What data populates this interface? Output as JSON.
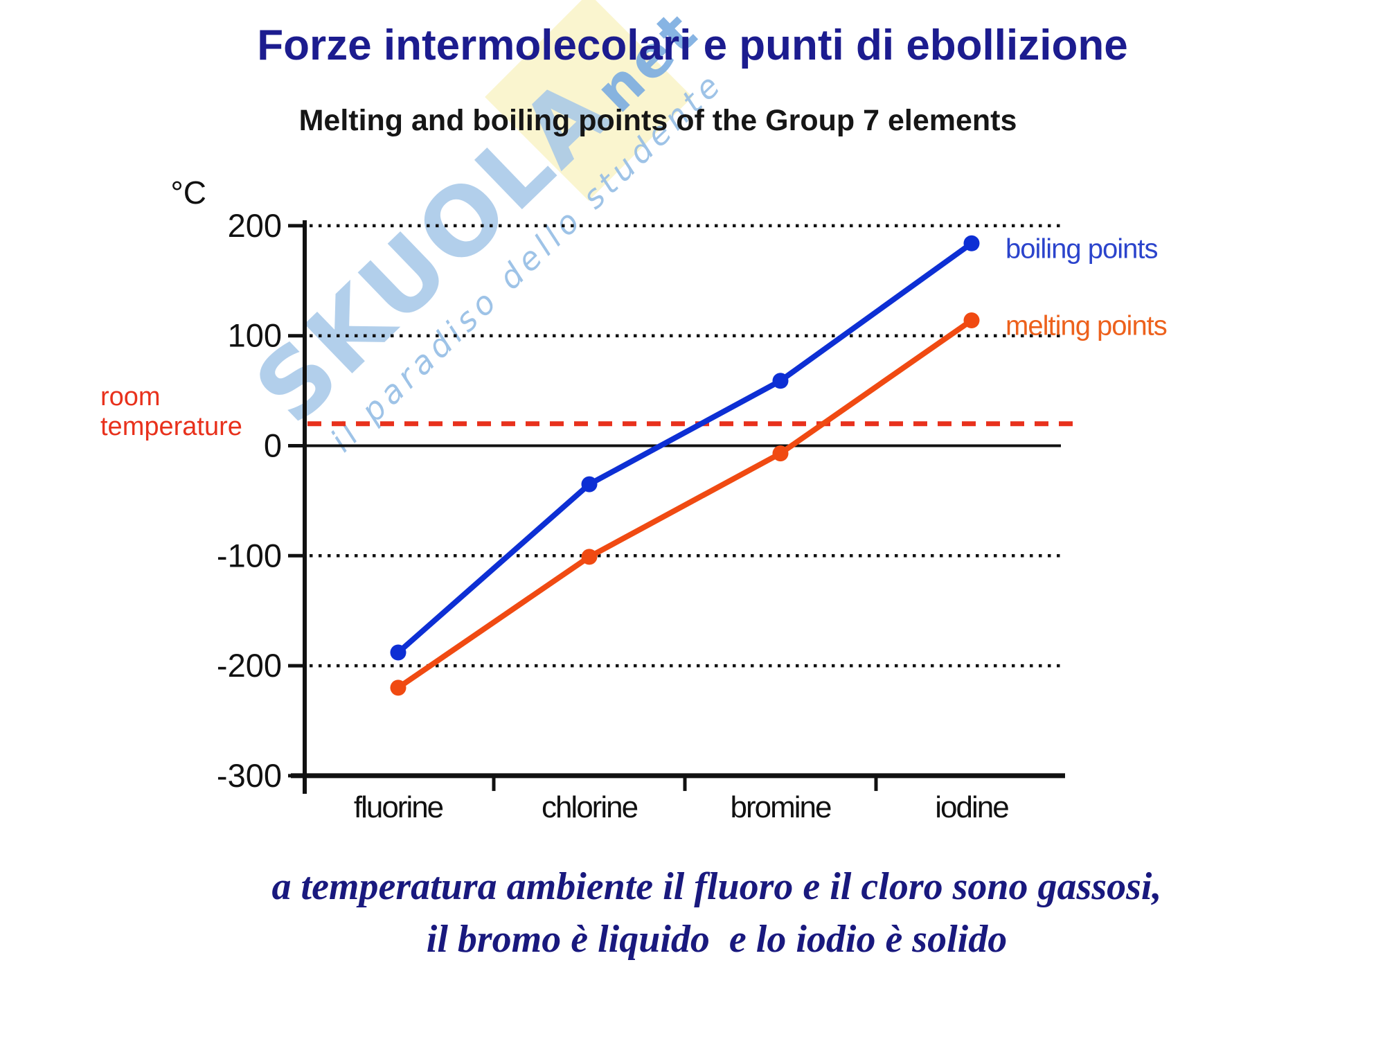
{
  "slide": {
    "title": "Forze intermolecolari e punti di ebollizione",
    "caption": [
      "a temperatura ambiente il fluoro e il cloro sono gassosi,",
      "il bromo è liquido  e lo iodio è solido"
    ]
  },
  "watermark": {
    "brand": "SKUOLA",
    "brand_suffix": "net",
    "tagline": "il paradiso dello studente"
  },
  "chart_data": {
    "type": "line",
    "title": "Melting and boiling points of the Group 7 elements",
    "ylabel": "°C",
    "xlabel": "",
    "categories": [
      "fluorine",
      "chlorine",
      "bromine",
      "iodine"
    ],
    "series": [
      {
        "name": "boiling points",
        "values": [
          -188,
          -35,
          59,
          184
        ],
        "color": "#0d2fd4",
        "legend_color": "#2b44cc"
      },
      {
        "name": "melting points",
        "values": [
          -220,
          -101,
          -7,
          114
        ],
        "color": "#f04a12",
        "legend_color": "#ed611c"
      }
    ],
    "yticks": [
      200,
      100,
      0,
      -100,
      -200,
      -300
    ],
    "ylim": [
      -300,
      210
    ],
    "room_temperature": {
      "label_lines": [
        "room",
        "temperature"
      ],
      "value": 20,
      "color": "#e8311c"
    },
    "grid": "dotted black horizontal gridlines at 200, 100, -100, -200; solid black line at 0",
    "legend_position": "right of final data points"
  }
}
